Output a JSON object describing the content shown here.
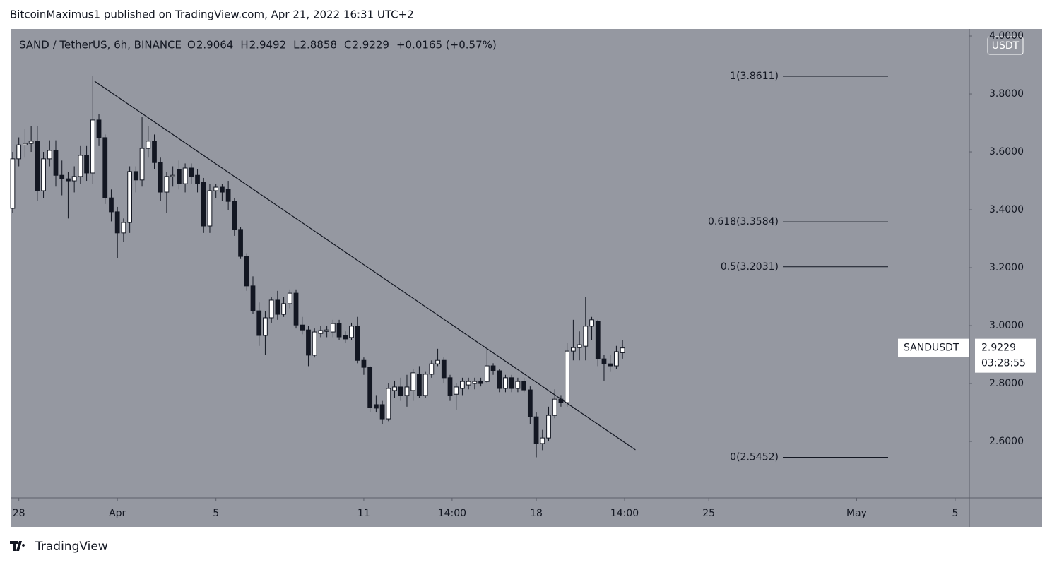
{
  "header": {
    "text": "BitcoinMaximus1 published on TradingView.com, Apr 21, 2022 16:31 UTC+2"
  },
  "footer": {
    "brand": "TradingView"
  },
  "chart_data": {
    "type": "candlestick",
    "symbol": "SAND / TetherUS, 6h, BINANCE",
    "ohlc_labels": [
      "O",
      "H",
      "L",
      "C"
    ],
    "change": "+0.0165 (+0.57%)",
    "currency": "USDT",
    "ticker": "SANDUSDT",
    "countdown": "03:28:55",
    "up_color": "#ffffff",
    "down_color": "#131722",
    "background": "#9598a1",
    "grid": false,
    "open": [
      3.405,
      3.576,
      3.624,
      3.629,
      3.637,
      3.466,
      3.576,
      3.605,
      3.519,
      3.507,
      3.5,
      3.515,
      3.588,
      3.527,
      3.71,
      3.649,
      3.441,
      3.393,
      3.32,
      3.356,
      3.532,
      3.503,
      3.612,
      3.637,
      3.563,
      3.461,
      3.515,
      3.539,
      3.49,
      3.544,
      3.519,
      3.495,
      3.344,
      3.466,
      3.478,
      3.471,
      3.429,
      3.332,
      3.239,
      3.137,
      3.051,
      2.966,
      3.027,
      3.088,
      3.039,
      3.076,
      3.112,
      3.002,
      2.985,
      2.898,
      2.973,
      2.98,
      2.978,
      3.007,
      2.966,
      2.959,
      2.998,
      2.88,
      2.856,
      2.727,
      2.727,
      2.678,
      2.776,
      2.788,
      2.759,
      2.776,
      2.832,
      2.759,
      2.832,
      2.868,
      2.88,
      2.82,
      2.763,
      2.783,
      2.795,
      2.8,
      2.807,
      2.807,
      2.861,
      2.844,
      2.783,
      2.82,
      2.783,
      2.807,
      2.778,
      2.685,
      2.593,
      2.612,
      2.69,
      2.746,
      2.734,
      2.912,
      2.924,
      2.929,
      2.998,
      3.015,
      2.885,
      2.868,
      2.861,
      2.9064
    ],
    "high": [
      3.6,
      3.65,
      3.68,
      3.69,
      3.69,
      3.6,
      3.64,
      3.64,
      3.57,
      3.53,
      3.55,
      3.62,
      3.62,
      3.8611,
      3.73,
      3.66,
      3.47,
      3.41,
      3.37,
      3.55,
      3.55,
      3.72,
      3.69,
      3.66,
      3.58,
      3.53,
      3.55,
      3.57,
      3.56,
      3.56,
      3.54,
      3.51,
      3.49,
      3.49,
      3.49,
      3.5,
      3.44,
      3.34,
      3.25,
      3.17,
      3.08,
      3.05,
      3.1,
      3.12,
      3.1,
      3.125,
      3.125,
      3.03,
      3.0,
      2.99,
      3.0,
      3.0,
      3.02,
      3.02,
      2.98,
      3.01,
      3.03,
      2.89,
      2.86,
      2.76,
      2.74,
      2.8,
      2.81,
      2.82,
      2.83,
      2.85,
      2.86,
      2.84,
      2.88,
      2.92,
      2.89,
      2.83,
      2.8,
      2.82,
      2.82,
      2.82,
      2.82,
      2.92,
      2.87,
      2.85,
      2.83,
      2.83,
      2.82,
      2.82,
      2.79,
      2.7,
      2.64,
      2.72,
      2.78,
      2.76,
      2.94,
      3.02,
      2.98,
      3.098,
      3.03,
      3.02,
      2.9,
      2.9,
      2.93,
      2.9492
    ],
    "low": [
      3.39,
      3.55,
      3.58,
      3.6,
      3.43,
      3.44,
      3.55,
      3.48,
      3.45,
      3.37,
      3.46,
      3.49,
      3.5,
      3.49,
      3.62,
      3.42,
      3.36,
      3.234,
      3.29,
      3.32,
      3.46,
      3.48,
      3.58,
      3.54,
      3.43,
      3.39,
      3.48,
      3.47,
      3.46,
      3.49,
      3.46,
      3.32,
      3.32,
      3.44,
      3.43,
      3.4,
      3.31,
      3.23,
      3.12,
      3.04,
      2.93,
      2.9,
      3.01,
      3.02,
      3.03,
      3.06,
      2.99,
      2.97,
      2.86,
      2.89,
      2.96,
      2.96,
      2.96,
      2.95,
      2.94,
      2.95,
      2.87,
      2.83,
      2.7,
      2.7,
      2.66,
      2.67,
      2.75,
      2.74,
      2.72,
      2.74,
      2.75,
      2.75,
      2.82,
      2.86,
      2.8,
      2.74,
      2.71,
      2.76,
      2.78,
      2.78,
      2.79,
      2.8,
      2.83,
      2.77,
      2.77,
      2.77,
      2.77,
      2.77,
      2.66,
      2.5452,
      2.57,
      2.6,
      2.68,
      2.72,
      2.72,
      2.88,
      2.88,
      2.88,
      2.95,
      2.86,
      2.81,
      2.84,
      2.85,
      2.8858
    ],
    "close": [
      3.576,
      3.624,
      3.629,
      3.637,
      3.466,
      3.576,
      3.605,
      3.519,
      3.507,
      3.5,
      3.515,
      3.588,
      3.527,
      3.71,
      3.649,
      3.441,
      3.393,
      3.32,
      3.356,
      3.532,
      3.503,
      3.612,
      3.637,
      3.563,
      3.461,
      3.515,
      3.519,
      3.49,
      3.544,
      3.515,
      3.49,
      3.344,
      3.466,
      3.478,
      3.461,
      3.429,
      3.332,
      3.239,
      3.137,
      3.051,
      2.966,
      3.027,
      3.088,
      3.039,
      3.076,
      3.112,
      3.002,
      2.985,
      2.898,
      2.978,
      2.983,
      2.985,
      3.007,
      2.961,
      2.954,
      2.998,
      2.88,
      2.856,
      2.717,
      2.715,
      2.678,
      2.783,
      2.788,
      2.759,
      2.788,
      2.837,
      2.759,
      2.832,
      2.868,
      2.88,
      2.82,
      2.759,
      2.788,
      2.807,
      2.807,
      2.807,
      2.8,
      2.861,
      2.844,
      2.783,
      2.82,
      2.783,
      2.807,
      2.778,
      2.685,
      2.593,
      2.612,
      2.69,
      2.746,
      2.734,
      2.912,
      2.924,
      2.934,
      2.998,
      3.02,
      2.885,
      2.868,
      2.861,
      2.91,
      2.9229
    ],
    "xlim": [
      -0.34,
      155.3
    ],
    "xticks": [
      {
        "value": 1,
        "label": "28"
      },
      {
        "value": 17,
        "label": "Apr"
      },
      {
        "value": 33,
        "label": "5"
      },
      {
        "value": 57,
        "label": "11"
      },
      {
        "value": 71.33,
        "label": "14:00"
      },
      {
        "value": 85,
        "label": "18"
      },
      {
        "value": 99.33,
        "label": "14:00"
      },
      {
        "value": 113,
        "label": "25"
      },
      {
        "value": 137,
        "label": "May"
      },
      {
        "value": 153,
        "label": "5"
      }
    ],
    "ylim": [
      2.405,
      4.022
    ],
    "yticks": [
      {
        "value": 4,
        "label": "4.0000"
      },
      {
        "value": 3.8,
        "label": "3.8000"
      },
      {
        "value": 3.6,
        "label": "3.6000"
      },
      {
        "value": 3.4,
        "label": "3.4000"
      },
      {
        "value": 3.2,
        "label": "3.2000"
      },
      {
        "value": 3,
        "label": "3.0000"
      },
      {
        "value": 2.8,
        "label": "2.8000"
      },
      {
        "value": 2.6,
        "label": "2.6000"
      }
    ],
    "trendline": {
      "x": [
        13.3,
        101.1
      ],
      "y": [
        3.844,
        2.571
      ],
      "color": "#131722"
    },
    "fib_levels": [
      {
        "label": "1(3.8611)",
        "value": 3.8611
      },
      {
        "label": "0.618(3.3584)",
        "value": 3.3584
      },
      {
        "label": "0.5(3.2031)",
        "value": 3.2031
      },
      {
        "label": "0(2.5452)",
        "value": 2.5452
      }
    ]
  }
}
